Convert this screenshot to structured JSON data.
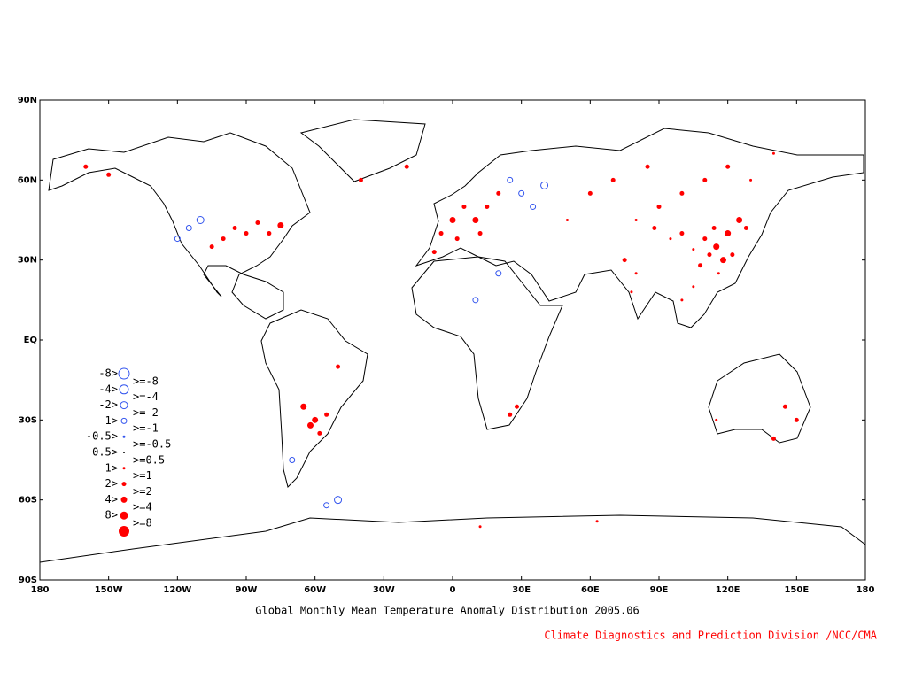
{
  "title": "Global Monthly Mean Temperature Anomaly Distribution 2005.06",
  "credit": "Climate Diagnostics and Prediction Division /NCC/CMA",
  "xlim": [
    -180,
    180
  ],
  "ylim": [
    -90,
    90
  ],
  "xticks": [
    {
      "value": -180,
      "label": "180"
    },
    {
      "value": -150,
      "label": "150W"
    },
    {
      "value": -120,
      "label": "120W"
    },
    {
      "value": -90,
      "label": "90W"
    },
    {
      "value": -60,
      "label": "60W"
    },
    {
      "value": -30,
      "label": "30W"
    },
    0,
    {
      "value": 30,
      "label": "30E"
    },
    {
      "value": 60,
      "label": "60E"
    },
    {
      "value": 90,
      "label": "90E"
    },
    {
      "value": 120,
      "label": "120E"
    },
    {
      "value": 150,
      "label": "150E"
    },
    {
      "value": 180,
      "label": "180"
    }
  ],
  "yticks": [
    {
      "value": 90,
      "label": "90N"
    },
    {
      "value": 60,
      "label": "60N"
    },
    {
      "value": 30,
      "label": "30N"
    },
    {
      "value": 0,
      "label": "EQ"
    },
    {
      "value": -30,
      "label": "30S"
    },
    {
      "value": -60,
      "label": "60S"
    },
    {
      "value": -90,
      "label": "90S"
    }
  ],
  "legend": {
    "left_labels": [
      "-8>",
      "-4>",
      "-2>",
      "-1>",
      "-0.5>",
      "0.5>",
      "1>",
      "2>",
      "4>",
      "8>"
    ],
    "right_labels": [
      ">=-8",
      ">=-4",
      ">=-2",
      ">=-1",
      ">=-0.5",
      ">=0.5",
      ">=1",
      ">=2",
      ">=4",
      ">=8"
    ],
    "colors": [
      "#3355ee",
      "#3355ee",
      "#3355ee",
      "#3355ee",
      "#3355ee",
      "#000000",
      "#ff0000",
      "#ff0000",
      "#ff0000",
      "#ff0000",
      "#ff0000"
    ]
  },
  "stations": [
    [
      115,
      35,
      8
    ],
    [
      112,
      32,
      7
    ],
    [
      118,
      30,
      8
    ],
    [
      110,
      38,
      7
    ],
    [
      120,
      40,
      8
    ],
    [
      108,
      28,
      7
    ],
    [
      114,
      42,
      7
    ],
    [
      122,
      32,
      7
    ],
    [
      105,
      34,
      6
    ],
    [
      116,
      25,
      6
    ],
    [
      125,
      45,
      8
    ],
    [
      128,
      42,
      7
    ],
    [
      100,
      40,
      7
    ],
    [
      95,
      38,
      6
    ],
    [
      88,
      42,
      7
    ],
    [
      80,
      45,
      6
    ],
    [
      90,
      50,
      7
    ],
    [
      100,
      55,
      7
    ],
    [
      110,
      60,
      7
    ],
    [
      120,
      65,
      7
    ],
    [
      130,
      60,
      6
    ],
    [
      140,
      70,
      6
    ],
    [
      85,
      65,
      7
    ],
    [
      70,
      60,
      7
    ],
    [
      60,
      55,
      7
    ],
    [
      50,
      45,
      6
    ],
    [
      75,
      30,
      7
    ],
    [
      80,
      25,
      6
    ],
    [
      78,
      18,
      6
    ],
    [
      100,
      15,
      6
    ],
    [
      105,
      20,
      6
    ],
    [
      -5,
      40,
      7
    ],
    [
      0,
      45,
      8
    ],
    [
      5,
      50,
      7
    ],
    [
      10,
      45,
      8
    ],
    [
      15,
      50,
      7
    ],
    [
      20,
      55,
      7
    ],
    [
      2,
      38,
      7
    ],
    [
      -8,
      33,
      7
    ],
    [
      12,
      40,
      7
    ],
    [
      25,
      60,
      3
    ],
    [
      30,
      55,
      3
    ],
    [
      35,
      50,
      3
    ],
    [
      40,
      58,
      2
    ],
    [
      20,
      25,
      3
    ],
    [
      10,
      15,
      3
    ],
    [
      -95,
      42,
      7
    ],
    [
      -90,
      40,
      7
    ],
    [
      -85,
      44,
      7
    ],
    [
      -80,
      40,
      7
    ],
    [
      -75,
      43,
      8
    ],
    [
      -100,
      38,
      7
    ],
    [
      -105,
      35,
      7
    ],
    [
      -115,
      42,
      3
    ],
    [
      -120,
      38,
      3
    ],
    [
      -110,
      45,
      2
    ],
    [
      -160,
      65,
      7
    ],
    [
      -150,
      62,
      7
    ],
    [
      -65,
      -25,
      8
    ],
    [
      -60,
      -30,
      8
    ],
    [
      -62,
      -32,
      8
    ],
    [
      -58,
      -35,
      7
    ],
    [
      -55,
      -28,
      7
    ],
    [
      -50,
      -10,
      7
    ],
    [
      -70,
      -45,
      3
    ],
    [
      -55,
      -62,
      3
    ],
    [
      -50,
      -60,
      2
    ],
    [
      28,
      -25,
      7
    ],
    [
      25,
      -28,
      7
    ],
    [
      145,
      -25,
      7
    ],
    [
      150,
      -30,
      7
    ],
    [
      115,
      -30,
      6
    ],
    [
      140,
      -37,
      7
    ],
    [
      12,
      -70,
      6
    ],
    [
      63,
      -68,
      6
    ],
    [
      -20,
      65,
      7
    ],
    [
      -40,
      60,
      7
    ]
  ]
}
